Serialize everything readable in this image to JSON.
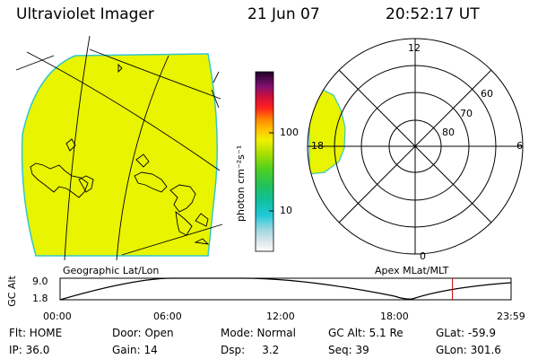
{
  "header": {
    "instrument": "Ultraviolet Imager",
    "date": "21 Jun 07",
    "time": "20:52:17 UT"
  },
  "colorbar": {
    "unit_label": "photon cm⁻²s⁻¹",
    "ticks": [
      "100",
      "10"
    ]
  },
  "left_panel": {
    "label": "Geographic Lat/Lon",
    "fill_color": "#e8f400",
    "edge_color": "#33c8c8"
  },
  "right_panel": {
    "label": "Apex MLat/MLT",
    "mlt_labels": [
      "12",
      "18",
      "6",
      "0"
    ],
    "lat_labels": [
      "60",
      "70",
      "80"
    ]
  },
  "altitude_plot": {
    "ylabel": "GC Alt",
    "ytick_top": "9.0",
    "ytick_bottom": "1.8",
    "xticks": [
      "00:00",
      "06:00",
      "12:00",
      "18:00",
      "23:59"
    ],
    "current_time_fraction": 0.87,
    "marker_color": "#cc0000"
  },
  "footer": {
    "row1": [
      "Flt: HOME",
      "Door: Open",
      "Mode: Normal",
      "GC Alt: 5.1 Re",
      "GLat: -59.9"
    ],
    "row2": [
      "IP: 36.0",
      "Gain: 14",
      "Dsp:     3.2",
      "Seq: 39",
      "GLon: 301.6"
    ]
  }
}
